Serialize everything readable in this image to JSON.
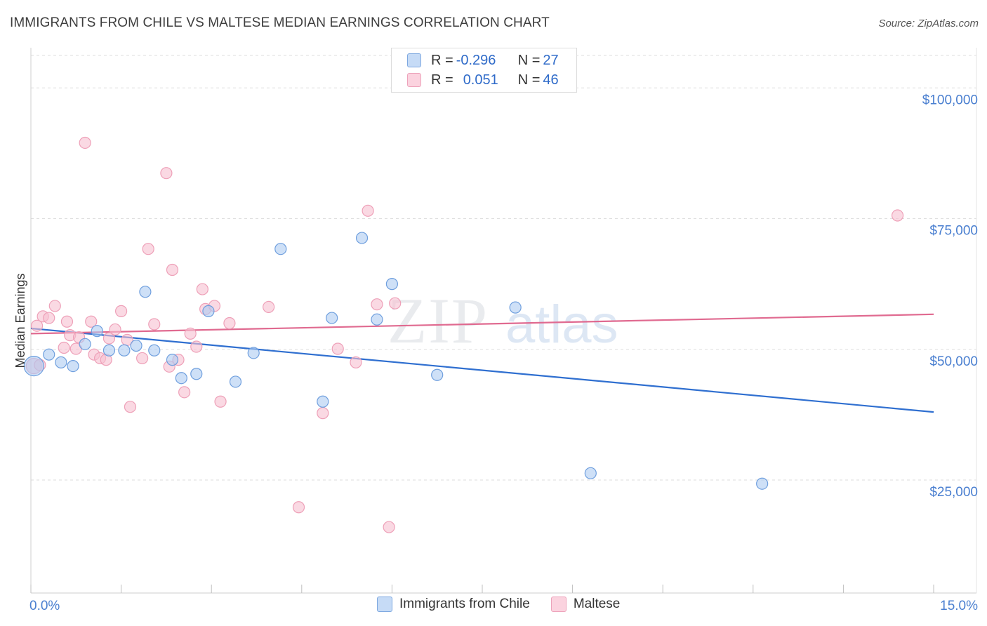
{
  "header": {
    "title": "IMMIGRANTS FROM CHILE VS MALTESE MEDIAN EARNINGS CORRELATION CHART",
    "source": "Source: ZipAtlas.com"
  },
  "watermark": {
    "zip": "ZIP",
    "atlas": "atlas"
  },
  "legend": {
    "rows": [
      {
        "r_label": "R = ",
        "r_value": "-0.296",
        "n_label": "N = ",
        "n_value": "27",
        "color": "#aecbf2"
      },
      {
        "r_label": "R = ",
        "r_value": "0.051",
        "n_label": "N = ",
        "n_value": "46",
        "color": "#f7bfd0"
      }
    ]
  },
  "chart_data": {
    "type": "scatter",
    "title": "IMMIGRANTS FROM CHILE VS MALTESE MEDIAN EARNINGS CORRELATION CHART",
    "xlabel": "",
    "ylabel": "Median Earnings",
    "xlim": [
      0,
      15
    ],
    "ylim": [
      5000,
      105000
    ],
    "x_tick_labels": [
      "0.0%",
      "15.0%"
    ],
    "y_ticks": [
      {
        "value": 25000,
        "label": "$25,000"
      },
      {
        "value": 50000,
        "label": "$50,000"
      },
      {
        "value": 75000,
        "label": "$75,000"
      },
      {
        "value": 100000,
        "label": "$100,000"
      }
    ],
    "series": [
      {
        "name": "Immigrants from Chile",
        "color": "#aecbf2",
        "stroke": "#6f9fde",
        "line_color": "#2f6fd0",
        "trend": [
          [
            0,
            54000
          ],
          [
            15,
            38000
          ]
        ],
        "points": [
          [
            0.05,
            46800
          ],
          [
            0.3,
            49000
          ],
          [
            0.5,
            47500
          ],
          [
            0.7,
            46800
          ],
          [
            0.9,
            51000
          ],
          [
            1.1,
            53500
          ],
          [
            1.3,
            49800
          ],
          [
            1.55,
            49800
          ],
          [
            1.75,
            50700
          ],
          [
            1.9,
            61000
          ],
          [
            2.05,
            49800
          ],
          [
            2.35,
            48000
          ],
          [
            2.5,
            44500
          ],
          [
            2.75,
            45300
          ],
          [
            2.95,
            57300
          ],
          [
            3.4,
            43800
          ],
          [
            3.7,
            49300
          ],
          [
            4.15,
            69200
          ],
          [
            4.85,
            40000
          ],
          [
            5.0,
            56000
          ],
          [
            5.5,
            71300
          ],
          [
            5.75,
            55700
          ],
          [
            6.0,
            62500
          ],
          [
            6.75,
            45100
          ],
          [
            8.05,
            58000
          ],
          [
            9.3,
            26300
          ],
          [
            12.15,
            24300
          ]
        ]
      },
      {
        "name": "Maltese",
        "color": "#f7bfd0",
        "stroke": "#eea0b8",
        "line_color": "#e06a90",
        "trend": [
          [
            0,
            53000
          ],
          [
            15,
            56700
          ]
        ],
        "points": [
          [
            0.05,
            46800
          ],
          [
            0.1,
            54500
          ],
          [
            0.2,
            56300
          ],
          [
            0.3,
            56000
          ],
          [
            0.4,
            58300
          ],
          [
            0.55,
            50300
          ],
          [
            0.6,
            55300
          ],
          [
            0.65,
            52700
          ],
          [
            0.75,
            50100
          ],
          [
            0.8,
            52300
          ],
          [
            0.9,
            89500
          ],
          [
            1.0,
            55300
          ],
          [
            1.05,
            49000
          ],
          [
            1.15,
            48300
          ],
          [
            1.3,
            52100
          ],
          [
            1.4,
            53800
          ],
          [
            1.5,
            57300
          ],
          [
            1.6,
            51800
          ],
          [
            1.65,
            39000
          ],
          [
            1.85,
            48300
          ],
          [
            1.95,
            69200
          ],
          [
            2.05,
            54800
          ],
          [
            2.25,
            83700
          ],
          [
            2.3,
            46700
          ],
          [
            2.35,
            65200
          ],
          [
            2.45,
            48000
          ],
          [
            2.55,
            41800
          ],
          [
            2.65,
            53000
          ],
          [
            2.75,
            50500
          ],
          [
            2.85,
            61500
          ],
          [
            2.9,
            57700
          ],
          [
            3.05,
            58300
          ],
          [
            3.15,
            40000
          ],
          [
            3.3,
            55000
          ],
          [
            3.95,
            58100
          ],
          [
            4.45,
            19800
          ],
          [
            4.85,
            37800
          ],
          [
            5.1,
            50100
          ],
          [
            5.4,
            47500
          ],
          [
            5.6,
            76500
          ],
          [
            5.75,
            58600
          ],
          [
            5.95,
            16000
          ],
          [
            6.05,
            58800
          ],
          [
            14.4,
            75600
          ],
          [
            0.15,
            47000
          ],
          [
            1.25,
            48000
          ]
        ]
      }
    ],
    "legend_position": "top-center",
    "grid": true
  }
}
